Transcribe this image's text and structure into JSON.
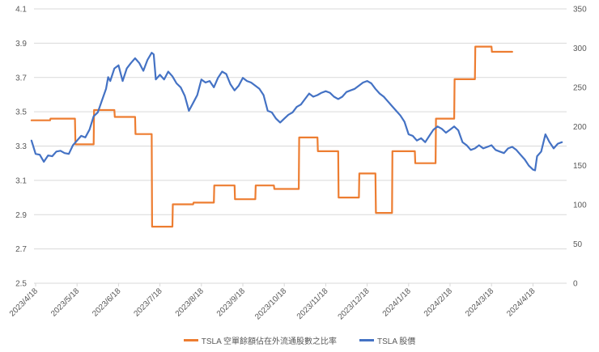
{
  "colors": {
    "ratio": "#ED7D31",
    "price": "#4472C4",
    "grid": "#D9D9D9",
    "text": "#595959"
  },
  "chart_data": {
    "type": "line",
    "title": "",
    "left_axis": {
      "min": 2.5,
      "max": 4.1,
      "ticks": [
        "2.5",
        "2.7",
        "2.9",
        "3.1",
        "3.3",
        "3.5",
        "3.7",
        "3.9",
        "4.1"
      ],
      "tick_values": [
        2.5,
        2.7,
        2.9,
        3.1,
        3.3,
        3.5,
        3.7,
        3.9,
        4.1
      ]
    },
    "right_axis": {
      "min": 0,
      "max": 350,
      "ticks": [
        "0",
        "50",
        "100",
        "150",
        "200",
        "250",
        "300",
        "350"
      ],
      "tick_values": [
        0,
        50,
        100,
        150,
        200,
        250,
        300,
        350
      ]
    },
    "x_range": [
      0,
      12.5
    ],
    "x_ticks": [
      {
        "label": "2023/4/18",
        "x": 0
      },
      {
        "label": "2023/5/18",
        "x": 1
      },
      {
        "label": "2023/6/18",
        "x": 2
      },
      {
        "label": "2023/7/18",
        "x": 3
      },
      {
        "label": "2023/8/18",
        "x": 4
      },
      {
        "label": "2023/9/18",
        "x": 5
      },
      {
        "label": "2023/10/18",
        "x": 6
      },
      {
        "label": "2023/11/18",
        "x": 7
      },
      {
        "label": "2023/12/18",
        "x": 8
      },
      {
        "label": "2024/1/18",
        "x": 9
      },
      {
        "label": "2024/2/18",
        "x": 10
      },
      {
        "label": "2024/3/18",
        "x": 11
      },
      {
        "label": "2024/4/18",
        "x": 12
      }
    ],
    "series": [
      {
        "name": "TSLA 空單餘額佔在外流通股數之比率",
        "axis": "left",
        "points": [
          [
            -0.1,
            3.45
          ],
          [
            0.35,
            3.45
          ],
          [
            0.36,
            3.46
          ],
          [
            0.95,
            3.46
          ],
          [
            0.96,
            3.31
          ],
          [
            1.4,
            3.31
          ],
          [
            1.41,
            3.51
          ],
          [
            1.9,
            3.51
          ],
          [
            1.91,
            3.47
          ],
          [
            2.4,
            3.47
          ],
          [
            2.41,
            3.37
          ],
          [
            2.8,
            3.37
          ],
          [
            2.81,
            2.83
          ],
          [
            3.3,
            2.83
          ],
          [
            3.31,
            2.96
          ],
          [
            3.8,
            2.96
          ],
          [
            3.81,
            2.97
          ],
          [
            4.3,
            2.97
          ],
          [
            4.31,
            3.07
          ],
          [
            4.8,
            3.07
          ],
          [
            4.81,
            2.99
          ],
          [
            5.3,
            2.99
          ],
          [
            5.31,
            3.07
          ],
          [
            5.75,
            3.07
          ],
          [
            5.76,
            3.05
          ],
          [
            6.35,
            3.05
          ],
          [
            6.36,
            3.35
          ],
          [
            6.8,
            3.35
          ],
          [
            6.81,
            3.27
          ],
          [
            7.3,
            3.27
          ],
          [
            7.31,
            3.0
          ],
          [
            7.8,
            3.0
          ],
          [
            7.81,
            3.14
          ],
          [
            8.2,
            3.14
          ],
          [
            8.21,
            2.91
          ],
          [
            8.6,
            2.91
          ],
          [
            8.61,
            3.27
          ],
          [
            9.15,
            3.27
          ],
          [
            9.16,
            3.2
          ],
          [
            9.65,
            3.2
          ],
          [
            9.66,
            3.46
          ],
          [
            10.1,
            3.46
          ],
          [
            10.11,
            3.69
          ],
          [
            10.6,
            3.69
          ],
          [
            10.61,
            3.88
          ],
          [
            11.0,
            3.88
          ],
          [
            11.01,
            3.85
          ],
          [
            11.5,
            3.85
          ]
        ]
      },
      {
        "name": "TSLA 股價",
        "axis": "right",
        "points": [
          [
            -0.1,
            182
          ],
          [
            0.0,
            165
          ],
          [
            0.1,
            164
          ],
          [
            0.2,
            155
          ],
          [
            0.3,
            163
          ],
          [
            0.4,
            162
          ],
          [
            0.5,
            168
          ],
          [
            0.6,
            169
          ],
          [
            0.7,
            166
          ],
          [
            0.8,
            165
          ],
          [
            0.9,
            176
          ],
          [
            1.0,
            182
          ],
          [
            1.1,
            188
          ],
          [
            1.2,
            186
          ],
          [
            1.3,
            196
          ],
          [
            1.4,
            213
          ],
          [
            1.5,
            218
          ],
          [
            1.6,
            233
          ],
          [
            1.7,
            248
          ],
          [
            1.75,
            263
          ],
          [
            1.8,
            258
          ],
          [
            1.9,
            274
          ],
          [
            2.0,
            278
          ],
          [
            2.1,
            258
          ],
          [
            2.2,
            274
          ],
          [
            2.3,
            281
          ],
          [
            2.4,
            287
          ],
          [
            2.5,
            281
          ],
          [
            2.6,
            271
          ],
          [
            2.7,
            285
          ],
          [
            2.8,
            294
          ],
          [
            2.85,
            292
          ],
          [
            2.9,
            260
          ],
          [
            3.0,
            266
          ],
          [
            3.1,
            260
          ],
          [
            3.2,
            270
          ],
          [
            3.3,
            264
          ],
          [
            3.4,
            255
          ],
          [
            3.5,
            250
          ],
          [
            3.6,
            239
          ],
          [
            3.7,
            220
          ],
          [
            3.8,
            230
          ],
          [
            3.9,
            240
          ],
          [
            4.0,
            260
          ],
          [
            4.1,
            256
          ],
          [
            4.2,
            258
          ],
          [
            4.3,
            250
          ],
          [
            4.4,
            262
          ],
          [
            4.5,
            270
          ],
          [
            4.6,
            267
          ],
          [
            4.7,
            254
          ],
          [
            4.8,
            246
          ],
          [
            4.9,
            252
          ],
          [
            5.0,
            262
          ],
          [
            5.1,
            258
          ],
          [
            5.2,
            256
          ],
          [
            5.3,
            252
          ],
          [
            5.4,
            248
          ],
          [
            5.5,
            240
          ],
          [
            5.6,
            220
          ],
          [
            5.7,
            218
          ],
          [
            5.8,
            210
          ],
          [
            5.9,
            205
          ],
          [
            6.0,
            210
          ],
          [
            6.1,
            215
          ],
          [
            6.2,
            218
          ],
          [
            6.3,
            225
          ],
          [
            6.4,
            228
          ],
          [
            6.5,
            235
          ],
          [
            6.6,
            242
          ],
          [
            6.7,
            238
          ],
          [
            6.8,
            240
          ],
          [
            6.9,
            243
          ],
          [
            7.0,
            245
          ],
          [
            7.1,
            243
          ],
          [
            7.2,
            238
          ],
          [
            7.3,
            235
          ],
          [
            7.4,
            238
          ],
          [
            7.5,
            244
          ],
          [
            7.6,
            246
          ],
          [
            7.7,
            248
          ],
          [
            7.8,
            252
          ],
          [
            7.9,
            256
          ],
          [
            8.0,
            258
          ],
          [
            8.1,
            255
          ],
          [
            8.2,
            248
          ],
          [
            8.3,
            242
          ],
          [
            8.4,
            238
          ],
          [
            8.5,
            232
          ],
          [
            8.6,
            226
          ],
          [
            8.7,
            220
          ],
          [
            8.8,
            214
          ],
          [
            8.9,
            206
          ],
          [
            9.0,
            190
          ],
          [
            9.1,
            188
          ],
          [
            9.2,
            182
          ],
          [
            9.3,
            185
          ],
          [
            9.4,
            180
          ],
          [
            9.5,
            188
          ],
          [
            9.6,
            196
          ],
          [
            9.7,
            200
          ],
          [
            9.8,
            197
          ],
          [
            9.9,
            192
          ],
          [
            10.0,
            196
          ],
          [
            10.1,
            200
          ],
          [
            10.2,
            195
          ],
          [
            10.3,
            180
          ],
          [
            10.4,
            176
          ],
          [
            10.5,
            170
          ],
          [
            10.6,
            172
          ],
          [
            10.7,
            176
          ],
          [
            10.8,
            172
          ],
          [
            10.9,
            174
          ],
          [
            11.0,
            176
          ],
          [
            11.1,
            170
          ],
          [
            11.2,
            168
          ],
          [
            11.3,
            166
          ],
          [
            11.4,
            172
          ],
          [
            11.5,
            174
          ],
          [
            11.6,
            170
          ],
          [
            11.7,
            164
          ],
          [
            11.8,
            158
          ],
          [
            11.9,
            150
          ],
          [
            12.0,
            145
          ],
          [
            12.05,
            144
          ],
          [
            12.1,
            162
          ],
          [
            12.2,
            168
          ],
          [
            12.3,
            190
          ],
          [
            12.4,
            180
          ],
          [
            12.5,
            172
          ],
          [
            12.6,
            178
          ],
          [
            12.7,
            180
          ]
        ]
      }
    ]
  }
}
